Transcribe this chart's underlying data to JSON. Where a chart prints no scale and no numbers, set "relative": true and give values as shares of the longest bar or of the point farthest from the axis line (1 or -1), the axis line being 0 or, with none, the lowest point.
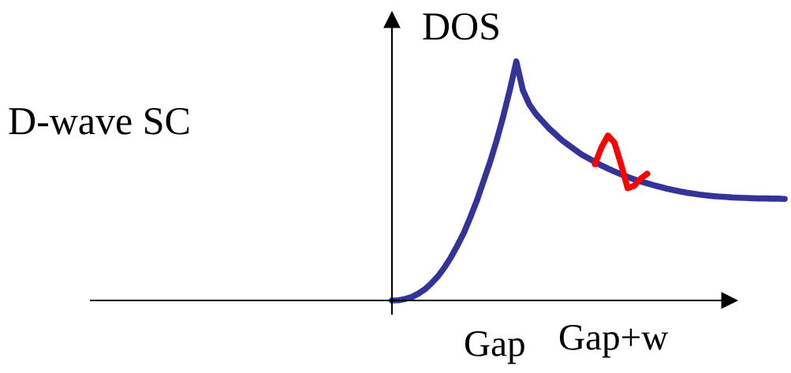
{
  "chart_data": {
    "type": "line",
    "relative": true,
    "ylabel": "DOS",
    "annotations": [
      "D-wave SC",
      "Gap",
      "Gap+w"
    ],
    "categories": [
      null,
      null,
      null,
      null,
      null,
      null,
      null,
      null,
      null,
      null,
      null,
      null,
      null,
      null,
      null,
      null,
      null,
      null,
      null,
      null,
      null,
      null,
      null,
      null,
      null,
      null,
      null,
      null,
      null,
      null,
      null,
      null,
      null,
      null,
      null,
      null,
      null,
      null,
      null,
      null,
      null,
      null,
      null,
      null,
      null,
      null,
      null,
      null,
      null,
      null,
      null,
      null,
      null,
      null,
      null,
      null,
      null,
      null,
      null,
      null,
      null
    ],
    "series": [
      {
        "color": "#333399",
        "values": [
          0,
          0.001,
          0.006,
          0.014,
          0.028,
          0.046,
          0.071,
          0.1,
          0.137,
          0.18,
          0.23,
          0.284,
          0.35,
          0.42,
          0.5,
          0.58,
          0.67,
          0.77,
          0.88,
          1.0,
          0.88,
          0.82,
          0.78,
          0.75,
          0.72,
          0.695,
          0.67,
          0.65,
          0.63,
          0.61,
          0.595,
          0.58,
          0.565,
          0.552,
          0.54,
          0.528,
          0.517,
          0.507,
          0.498,
          0.49,
          0.482,
          0.475,
          0.468,
          0.462,
          0.456,
          0.451,
          0.447,
          0.443,
          0.44,
          0.437,
          0.435,
          0.433,
          0.431,
          0.43,
          0.429,
          0.428,
          0.427,
          0.427,
          0.426,
          0.426,
          0.425
        ]
      },
      {
        "color": "#ff0000",
        "values": [
          null,
          null,
          null,
          null,
          null,
          null,
          null,
          null,
          null,
          null,
          null,
          null,
          null,
          null,
          null,
          null,
          null,
          null,
          null,
          null,
          null,
          null,
          null,
          null,
          null,
          null,
          null,
          null,
          null,
          null,
          null,
          0.57,
          0.64,
          0.69,
          0.66,
          0.57,
          0.47,
          0.48,
          0.51,
          0.53,
          null,
          null,
          null,
          null,
          null,
          null,
          null,
          null,
          null,
          null,
          null,
          null,
          null,
          null,
          null,
          null,
          null,
          null,
          null,
          null,
          null
        ]
      }
    ],
    "legend": false,
    "marker": "none",
    "line_style": "solid"
  }
}
